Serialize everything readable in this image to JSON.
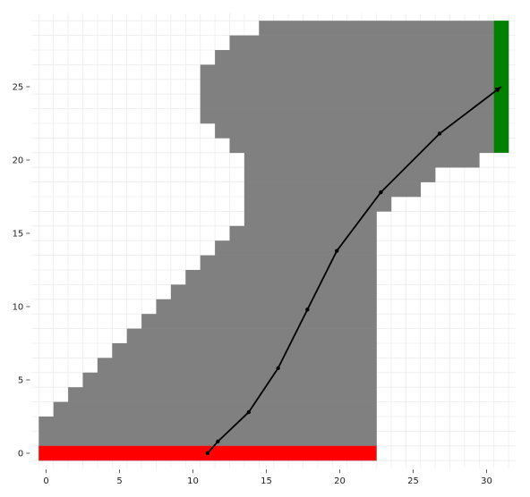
{
  "grid": {
    "x_range": [
      0,
      31
    ],
    "y_range": [
      0,
      29
    ],
    "x_ticks": [
      0,
      5,
      10,
      15,
      20,
      25,
      30
    ],
    "y_ticks": [
      0,
      5,
      10,
      15,
      20,
      25
    ],
    "rows": [
      {
        "y": 0,
        "from": 0,
        "to": 22
      },
      {
        "y": 1,
        "from": 0,
        "to": 22
      },
      {
        "y": 2,
        "from": 0,
        "to": 22
      },
      {
        "y": 3,
        "from": 1,
        "to": 22
      },
      {
        "y": 4,
        "from": 2,
        "to": 22
      },
      {
        "y": 5,
        "from": 3,
        "to": 22
      },
      {
        "y": 6,
        "from": 4,
        "to": 22
      },
      {
        "y": 7,
        "from": 5,
        "to": 22
      },
      {
        "y": 8,
        "from": 6,
        "to": 22
      },
      {
        "y": 9,
        "from": 7,
        "to": 22
      },
      {
        "y": 10,
        "from": 8,
        "to": 22
      },
      {
        "y": 11,
        "from": 9,
        "to": 22
      },
      {
        "y": 12,
        "from": 10,
        "to": 22
      },
      {
        "y": 13,
        "from": 11,
        "to": 22
      },
      {
        "y": 14,
        "from": 12,
        "to": 22
      },
      {
        "y": 15,
        "from": 13,
        "to": 22
      },
      {
        "y": 16,
        "from": 14,
        "to": 22
      },
      {
        "y": 17,
        "from": 14,
        "to": 23
      },
      {
        "y": 18,
        "from": 14,
        "to": 25
      },
      {
        "y": 19,
        "from": 14,
        "to": 26
      },
      {
        "y": 20,
        "from": 14,
        "to": 29
      },
      {
        "y": 21,
        "from": 13,
        "to": 31
      },
      {
        "y": 22,
        "from": 12,
        "to": 31
      },
      {
        "y": 23,
        "from": 11,
        "to": 31
      },
      {
        "y": 24,
        "from": 11,
        "to": 31
      },
      {
        "y": 25,
        "from": 11,
        "to": 31
      },
      {
        "y": 26,
        "from": 11,
        "to": 31
      },
      {
        "y": 27,
        "from": 12,
        "to": 31
      },
      {
        "y": 28,
        "from": 13,
        "to": 31
      },
      {
        "y": 29,
        "from": 15,
        "to": 31
      }
    ],
    "start_line": {
      "y": 0,
      "from": 0,
      "to": 22
    },
    "finish_line": {
      "x": 31,
      "from": 21,
      "to": 29
    },
    "trajectory": [
      [
        11,
        0
      ],
      [
        11.7,
        0.8
      ],
      [
        13.8,
        2.8
      ],
      [
        15.8,
        5.8
      ],
      [
        17.8,
        9.8
      ],
      [
        19.8,
        13.8
      ],
      [
        22.8,
        17.8
      ],
      [
        26.8,
        21.8
      ],
      [
        31,
        25
      ]
    ]
  },
  "colors": {
    "track": "#808080",
    "start": "#ff0000",
    "finish": "#008000",
    "path": "#000000",
    "grid_line": "#ececec",
    "background": "#ffffff"
  }
}
